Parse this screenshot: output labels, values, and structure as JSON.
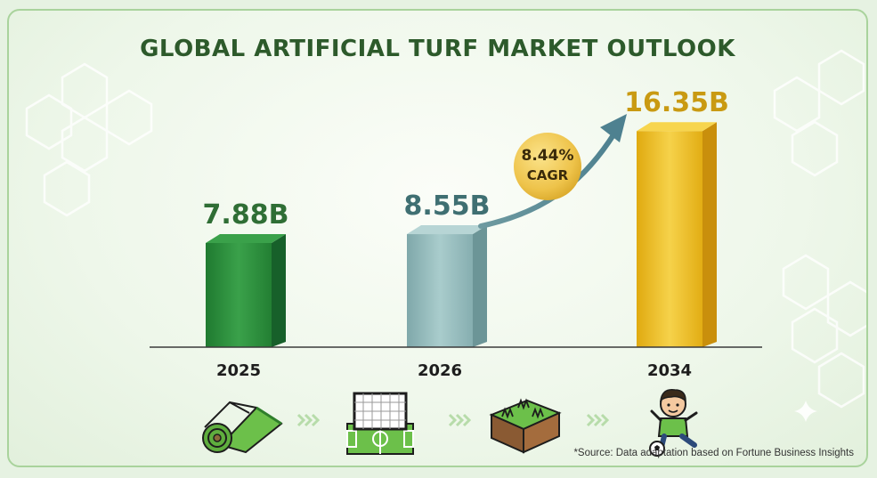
{
  "title": "GLOBAL ARTIFICIAL TURF MARKET OUTLOOK",
  "source": "*Source: Data adaptation based on Fortune Business Insights",
  "cagr": {
    "value": "8.44%",
    "label": "CAGR"
  },
  "chart_data": {
    "type": "bar",
    "title": "GLOBAL ARTIFICIAL TURF MARKET OUTLOOK",
    "categories": [
      "2025",
      "2026",
      "2034"
    ],
    "values": [
      7.88,
      8.55,
      16.35
    ],
    "value_labels": [
      "7.88B",
      "8.55B",
      "16.35B"
    ],
    "bar_colors": [
      "#2e8b3e",
      "#8fb8b8",
      "#e9b91f"
    ],
    "label_colors": [
      "#2f6e35",
      "#3f6f72",
      "#c99a12"
    ],
    "ylim": [
      0,
      17
    ],
    "grid": false
  },
  "icons": [
    {
      "name": "turf-roll-icon"
    },
    {
      "name": "chevrons-right-icon"
    },
    {
      "name": "soccer-field-goal-icon"
    },
    {
      "name": "chevrons-right-icon"
    },
    {
      "name": "grass-soil-block-icon"
    },
    {
      "name": "chevrons-right-icon"
    },
    {
      "name": "boy-kicking-ball-icon"
    }
  ]
}
